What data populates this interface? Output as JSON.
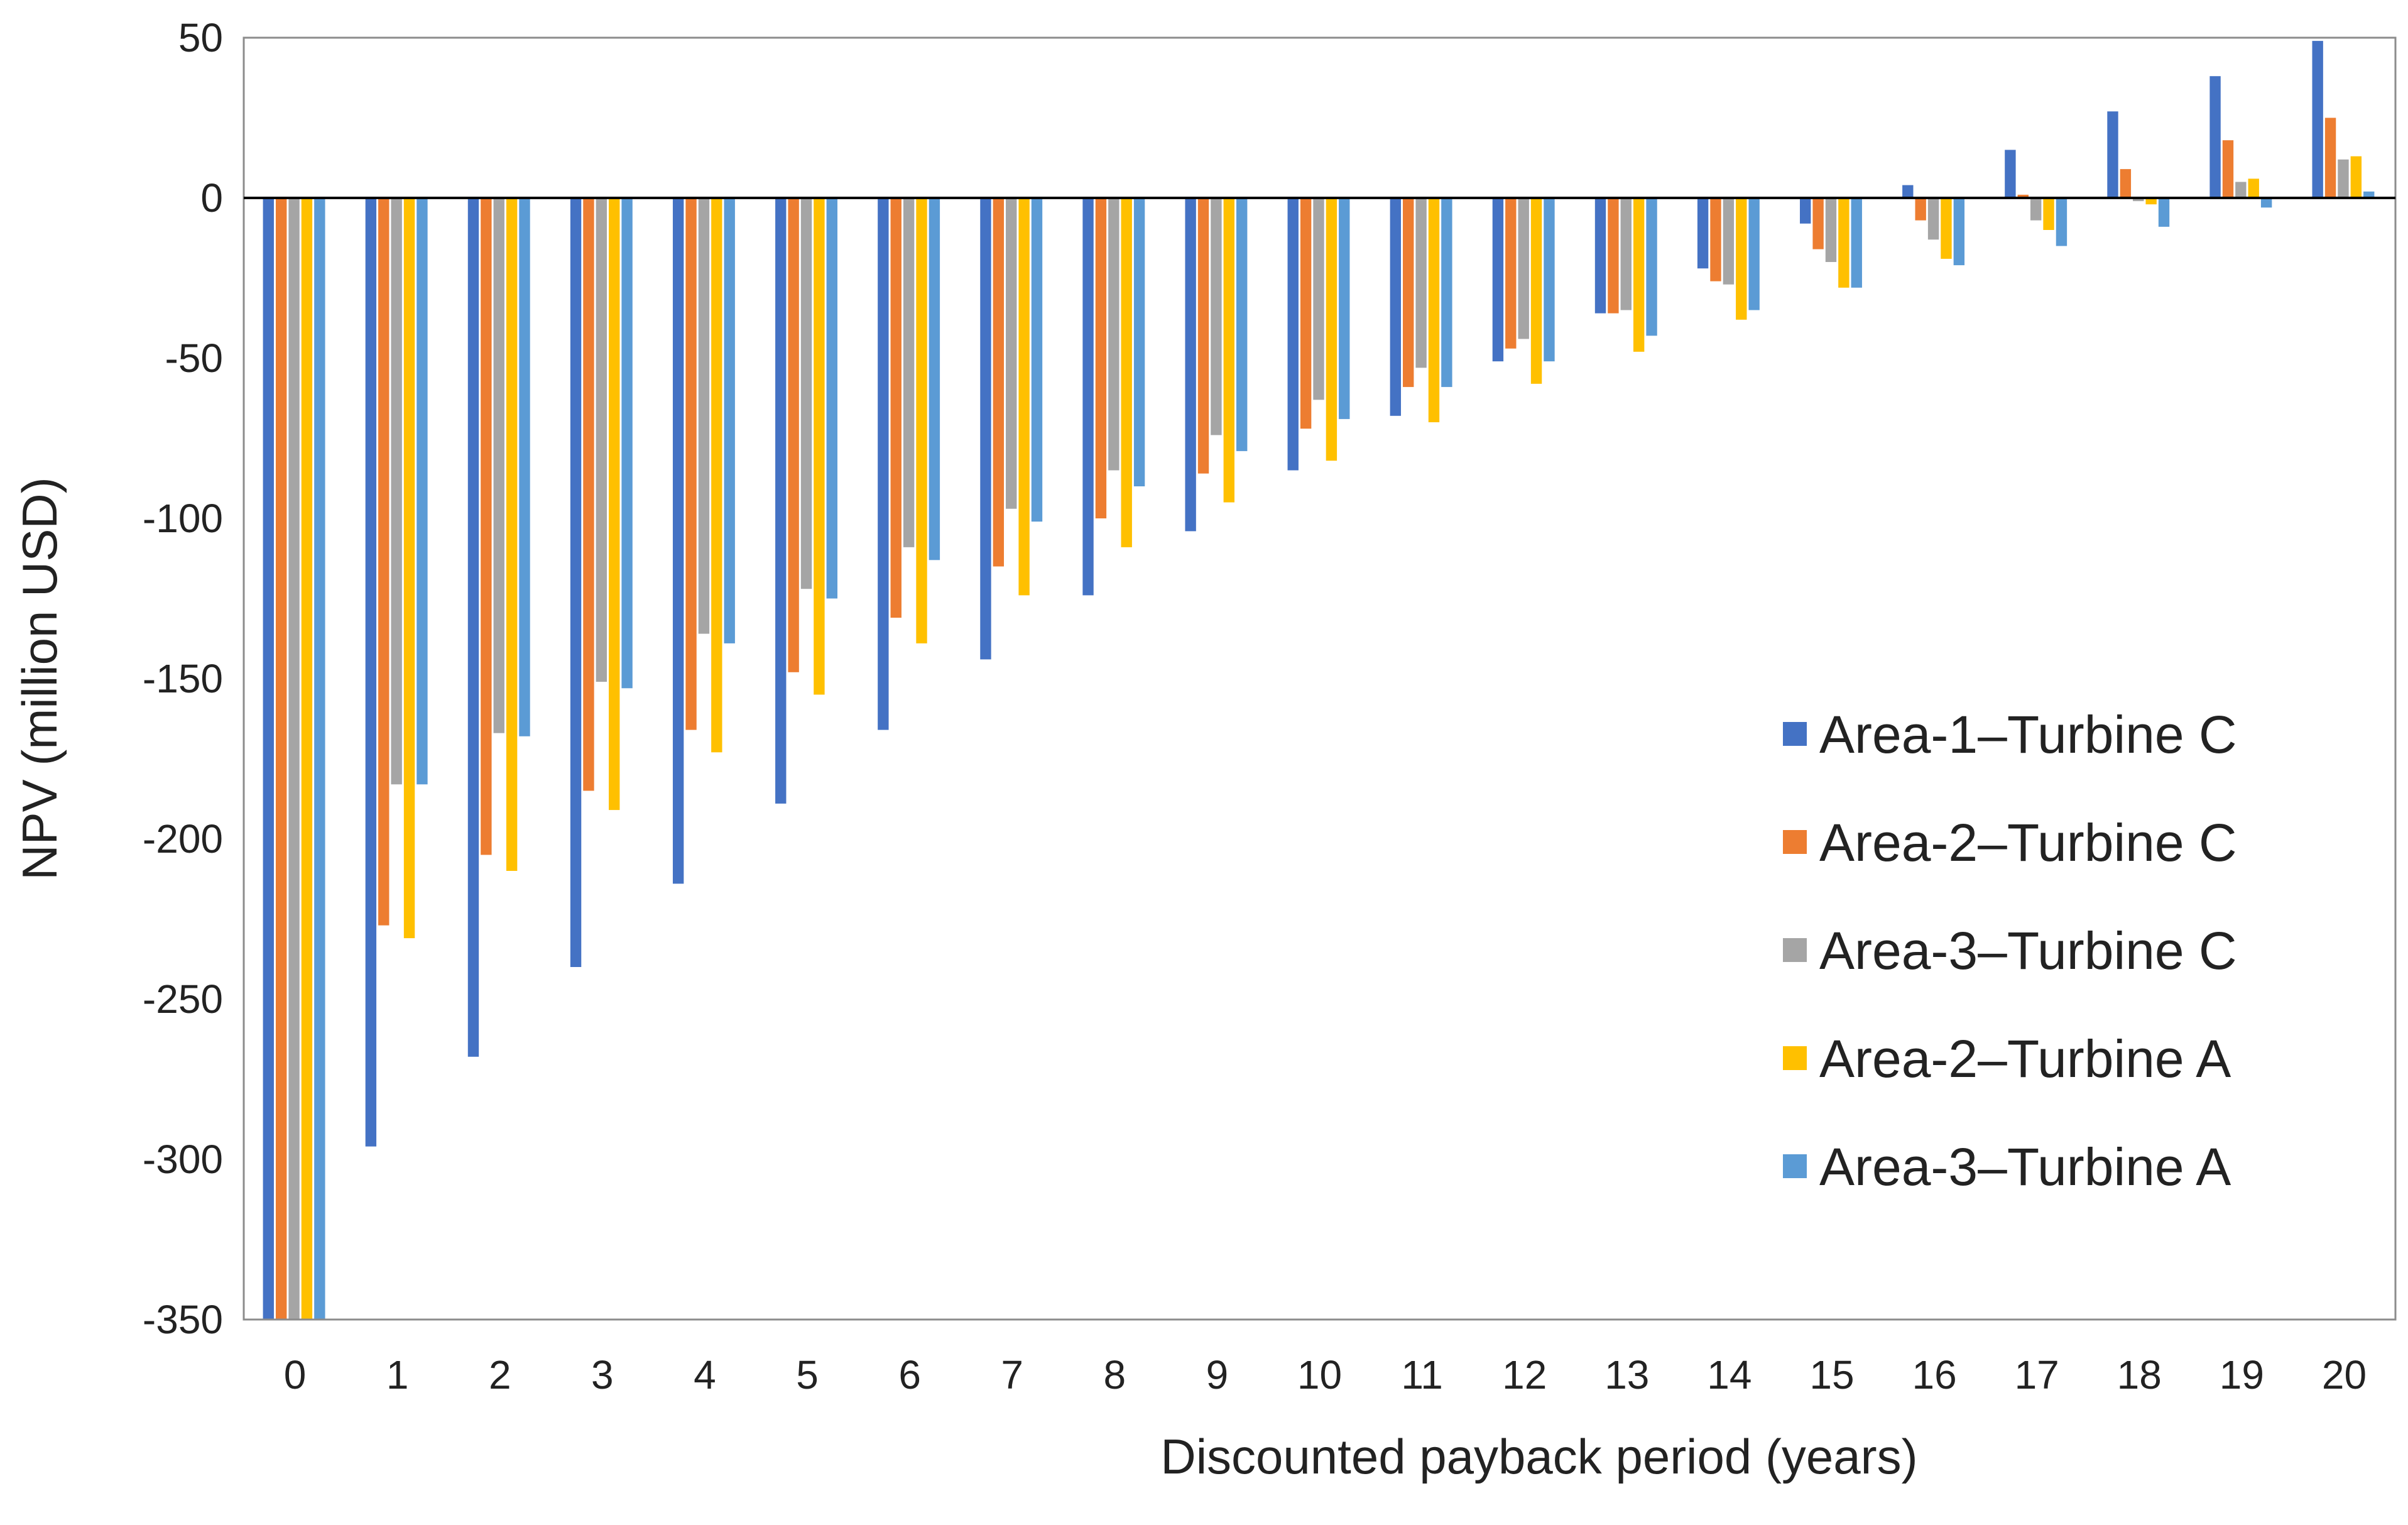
{
  "chart_data": {
    "type": "bar",
    "xlabel": "Discounted payback period (years)",
    "ylabel": "NPV (million USD)",
    "ylim": [
      -350,
      50
    ],
    "yticks": [
      50,
      0,
      -50,
      -100,
      -150,
      -200,
      -250,
      -300,
      -350
    ],
    "categories": [
      "0",
      "1",
      "2",
      "3",
      "4",
      "5",
      "6",
      "7",
      "8",
      "9",
      "10",
      "11",
      "12",
      "13",
      "14",
      "15",
      "16",
      "17",
      "18",
      "19",
      "20"
    ],
    "legend_position": "right-center, inside plot",
    "grid": false,
    "series": [
      {
        "name": "Area-1–Turbine C",
        "color": "#4472C4",
        "values": [
          -350,
          -296,
          -268,
          -240,
          -214,
          -189,
          -166,
          -144,
          -124,
          -104,
          -85,
          -68,
          -51,
          -36,
          -22,
          -8,
          4,
          15,
          27,
          38,
          49
        ]
      },
      {
        "name": "Area-2–Turbine C",
        "color": "#ED7D31",
        "values": [
          -350,
          -227,
          -205,
          -185,
          -166,
          -148,
          -131,
          -115,
          -100,
          -86,
          -72,
          -59,
          -47,
          -36,
          -26,
          -16,
          -7,
          1,
          9,
          18,
          25
        ]
      },
      {
        "name": "Area-3–Turbine C",
        "color": "#A5A5A5",
        "values": [
          -350,
          -183,
          -167,
          -151,
          -136,
          -122,
          -109,
          -97,
          -85,
          -74,
          -63,
          -53,
          -44,
          -35,
          -27,
          -20,
          -13,
          -7,
          -1,
          5,
          12
        ]
      },
      {
        "name": "Area-2–Turbine A",
        "color": "#FFC000",
        "values": [
          -350,
          -231,
          -210,
          -191,
          -173,
          -155,
          -139,
          -124,
          -109,
          -95,
          -82,
          -70,
          -58,
          -48,
          -38,
          -28,
          -19,
          -10,
          -2,
          6,
          13
        ]
      },
      {
        "name": "Area-3–Turbine A",
        "color": "#5B9BD5",
        "values": [
          -350,
          -183,
          -168,
          -153,
          -139,
          -125,
          -113,
          -101,
          -90,
          -79,
          -69,
          -59,
          -51,
          -43,
          -35,
          -28,
          -21,
          -15,
          -9,
          -3,
          2
        ]
      }
    ]
  }
}
